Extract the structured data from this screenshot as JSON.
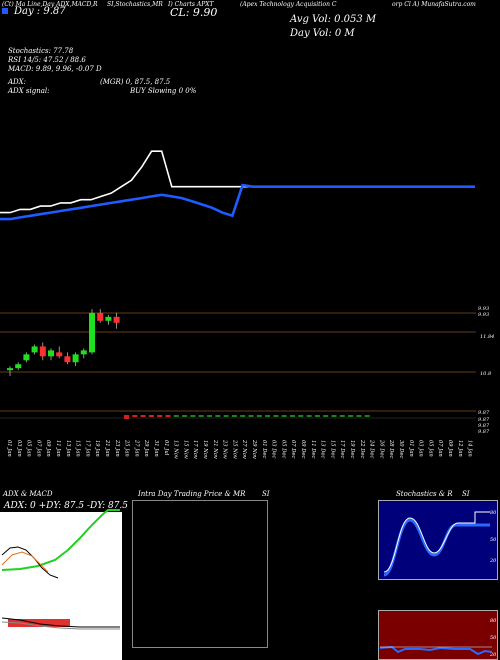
{
  "header": {
    "left_title": "(Ct) Ma Line,Day ADX,MACD,R",
    "mid_title1": "SI,Stochastics,MR",
    "mid_title2": "I) Charts APXT",
    "right_title1": "(Apex Technology Acquisition C",
    "right_title2": "orp Cl A) MunafaSutra.com",
    "day_label": "Day : 9.87",
    "cl_label": "CL: 9.90",
    "avg_vol": "Avg Vol: 0.053 M",
    "day_vol": "Day Vol: 0  M"
  },
  "indicators": {
    "stoch": "Stochastics: 77.78",
    "rsi": "RSI 14/5: 47.52 / 88.6",
    "macd": "MACD: 9.89, 9.96, -0.07 D",
    "adx": "ADX: ",
    "adx_rhs": "(MGR) 0, 87.5,  87.5",
    "adx_signal": "ADX signal:",
    "buy_sig": "BUY Slowing  0 0%"
  },
  "price_scale": {
    "p1": "9.93",
    "p2": "9.93",
    "p3": "11.84",
    "p4": "10.8",
    "p5": "9.87",
    "p6": "9.87",
    "p7": "9.87",
    "p8": "9.87"
  },
  "dates": [
    "01 Jan",
    "03 Jan",
    "05 Jan",
    "07 Jan",
    "09 Jan",
    "11 Jan",
    "13 Jan",
    "15 Jan",
    "17 Jan",
    "19 Jan",
    "21 Jan",
    "23 Jan",
    "25 Jan",
    "27 Jan",
    "29 Jan",
    "31 Jan",
    "01 Jul",
    "13 Nov",
    "15 Nov",
    "17 Nov",
    "19 Nov",
    "21 Nov",
    "23 Nov",
    "25 Nov",
    "27 Nov",
    "29 Nov",
    "01 Dec",
    "03 Dec",
    "05 Dec",
    "07 Dec",
    "09 Dec",
    "11 Dec",
    "13 Dec",
    "15 Dec",
    "17 Dec",
    "19 Dec",
    "22 Dec",
    "24 Dec",
    "26 Dec",
    "28 Dec",
    "30 Dec",
    "01 Jan",
    "03 Jan",
    "05 Jan",
    "07 Jan",
    "09 Jan",
    "12 Jan",
    "14 Jan"
  ],
  "panels": {
    "adx_title": "ADX  & MACD",
    "adx_values": "ADX: 0  +DY: 87.5  -DY: 87.5",
    "intraday_title": "Intra Day Trading Price  & MR",
    "intraday_si": "SI",
    "stoch_title": "Stochastics & R",
    "stoch_si": "SI",
    "stoch_ticks": [
      "80",
      "50",
      "20"
    ],
    "rsi_ticks": [
      "80",
      "50",
      "20"
    ]
  },
  "chart_data": {
    "type": "line",
    "series": [
      {
        "name": "price",
        "values": [
          9.86,
          9.86,
          9.87,
          9.87,
          9.88,
          9.88,
          9.89,
          9.89,
          9.9,
          9.9,
          9.91,
          9.92,
          9.94,
          9.96,
          10.0,
          10.05,
          10.05,
          9.94,
          9.94,
          9.94,
          9.94,
          9.94,
          9.94,
          9.94,
          9.94,
          9.94,
          9.94,
          9.94,
          9.94,
          9.94,
          9.94,
          9.94,
          9.94,
          9.94,
          9.94,
          9.94,
          9.94,
          9.94,
          9.94,
          9.94,
          9.94,
          9.94,
          9.94,
          9.94,
          9.94,
          9.94,
          9.94,
          9.94
        ]
      },
      {
        "name": "ma",
        "values": [
          9.84,
          9.84,
          9.845,
          9.85,
          9.855,
          9.86,
          9.865,
          9.87,
          9.875,
          9.88,
          9.885,
          9.89,
          9.895,
          9.9,
          9.905,
          9.91,
          9.915,
          9.91,
          9.905,
          9.895,
          9.885,
          9.875,
          9.86,
          9.85,
          9.945,
          9.94,
          9.94,
          9.94,
          9.94,
          9.94,
          9.94,
          9.94,
          9.94,
          9.94,
          9.94,
          9.94,
          9.94,
          9.94,
          9.94,
          9.94,
          9.94,
          9.94,
          9.94,
          9.94,
          9.94,
          9.94,
          9.94,
          9.94
        ]
      }
    ],
    "candles": [
      {
        "o": 10.85,
        "h": 10.95,
        "l": 10.7,
        "c": 10.9
      },
      {
        "o": 10.9,
        "h": 11.05,
        "l": 10.85,
        "c": 11.0
      },
      {
        "o": 11.1,
        "h": 11.3,
        "l": 11.05,
        "c": 11.25
      },
      {
        "o": 11.3,
        "h": 11.5,
        "l": 11.25,
        "c": 11.45
      },
      {
        "o": 11.45,
        "h": 11.55,
        "l": 11.1,
        "c": 11.2
      },
      {
        "o": 11.2,
        "h": 11.4,
        "l": 11.1,
        "c": 11.35
      },
      {
        "o": 11.3,
        "h": 11.45,
        "l": 11.15,
        "c": 11.2
      },
      {
        "o": 11.2,
        "h": 11.3,
        "l": 11.0,
        "c": 11.05
      },
      {
        "o": 11.05,
        "h": 11.3,
        "l": 10.95,
        "c": 11.25
      },
      {
        "o": 11.25,
        "h": 11.4,
        "l": 11.15,
        "c": 11.35
      },
      {
        "o": 11.3,
        "h": 12.4,
        "l": 11.25,
        "c": 12.3
      },
      {
        "o": 12.3,
        "h": 12.4,
        "l": 12.05,
        "c": 12.1
      },
      {
        "o": 12.1,
        "h": 12.25,
        "l": 12.0,
        "c": 12.2
      },
      {
        "o": 12.2,
        "h": 12.3,
        "l": 11.9,
        "c": 12.05
      }
    ],
    "ylim": [
      9.8,
      10.1
    ]
  }
}
